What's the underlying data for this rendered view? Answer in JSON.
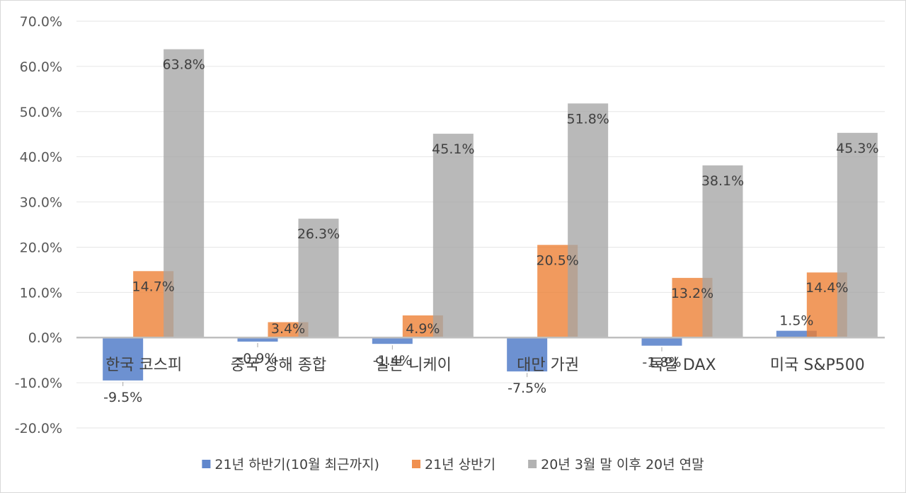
{
  "chart_data": {
    "type": "bar",
    "categories": [
      "한국 코스피",
      "중국 상해 종합",
      "일본 니케이",
      "대만 가권",
      "독일 DAX",
      "미국 S&P500"
    ],
    "series": [
      {
        "name": "21년 하반기(10월 최근까지)",
        "color": "#4472C4",
        "values": [
          -9.5,
          -0.9,
          -1.4,
          -7.5,
          -1.8,
          1.5
        ],
        "labels": [
          "-9.5%",
          "-0.9%",
          "-1.4%",
          "-7.5%",
          "-1.8%",
          "1.5%"
        ]
      },
      {
        "name": "21년 상반기",
        "color": "#ED7D31",
        "values": [
          14.7,
          3.4,
          4.9,
          20.5,
          13.2,
          14.4
        ],
        "labels": [
          "14.7%",
          "3.4%",
          "4.9%",
          "20.5%",
          "13.2%",
          "14.4%"
        ]
      },
      {
        "name": "20년 3월 말 이후 20년 연말",
        "color": "#A5A5A5",
        "values": [
          63.8,
          26.3,
          45.1,
          51.8,
          38.1,
          45.3
        ],
        "labels": [
          "63.8%",
          "26.3%",
          "45.1%",
          "51.8%",
          "38.1%",
          "45.3%"
        ]
      }
    ],
    "y_ticks": [
      "70.0%",
      "60.0%",
      "50.0%",
      "40.0%",
      "30.0%",
      "20.0%",
      "10.0%",
      "0.0%",
      "-10.0%",
      "-20.0%"
    ],
    "ylim": [
      -20,
      70
    ],
    "grid": true,
    "legend": "bottom"
  }
}
